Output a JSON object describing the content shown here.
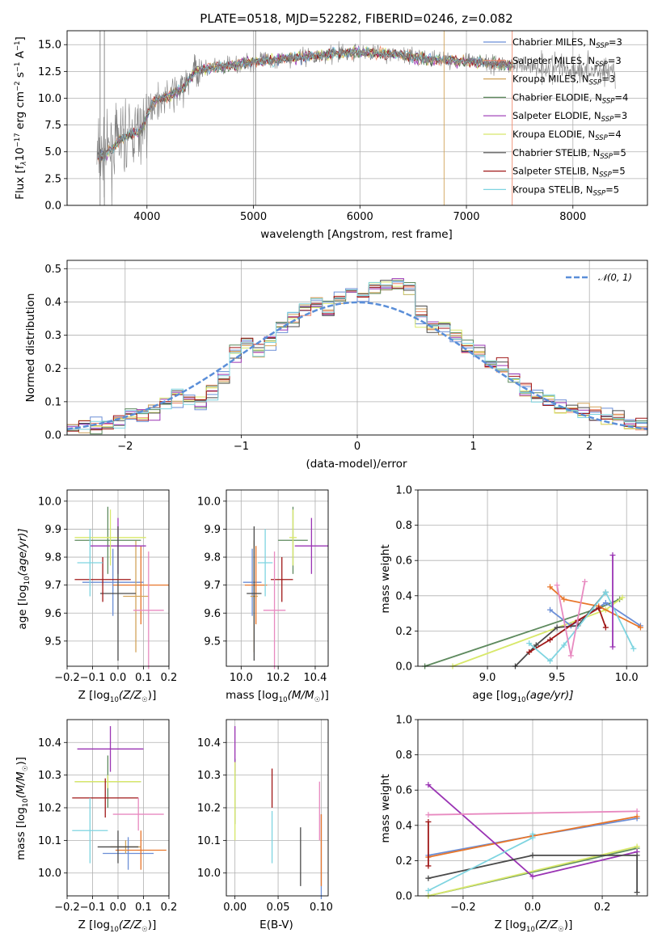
{
  "title": "PLATE=0518, MJD=52282, FIBERID=0246, z=0.082",
  "colors": {
    "Chabrier MILES": "#6b8ed6",
    "Salpeter MILES": "#f08a6e",
    "Kroupa MILES": "#d2a45a",
    "Chabrier ELODIE": "#5e8a5e",
    "Salpeter ELODIE": "#9a34b4",
    "Kroupa ELODIE": "#d8e86a",
    "Chabrier STELIB": "#4a4a4a",
    "Salpeter STELIB": "#a01818",
    "Kroupa STELIB": "#7ed4e0",
    "gaussian": "#5a8ed8",
    "pink": "#e88ac0",
    "orange": "#e8762a",
    "grey": "#888888"
  },
  "spectrum": {
    "xlabel": "wavelength [Angstrom, rest frame]",
    "ylabel": "Flux [f",
    "ylabel_suffix": "10",
    "ylabel_exp": "−17",
    "ylabel_units": " erg cm",
    "ylabel_e2": "−2",
    "ylabel_s": " s",
    "ylabel_e1": "−1",
    "ylabel_A": " A",
    "ylabel_e3": "−1",
    "ylabel_end": "]",
    "legend": [
      {
        "label": "Chabrier MILES, N",
        "n": "3"
      },
      {
        "label": "Salpeter MILES, N",
        "n": "3"
      },
      {
        "label": "Kroupa MILES, N",
        "n": "3"
      },
      {
        "label": "Chabrier ELODIE, N",
        "n": "4"
      },
      {
        "label": "Salpeter ELODIE, N",
        "n": "3"
      },
      {
        "label": "Kroupa ELODIE, N",
        "n": "4"
      },
      {
        "label": "Chabrier STELIB, N",
        "n": "5"
      },
      {
        "label": "Salpeter STELIB, N",
        "n": "5"
      },
      {
        "label": "Kroupa STELIB, N",
        "n": "5"
      }
    ],
    "legend_sub": "SSP"
  },
  "residuals": {
    "xlabel": "(data-model)/error",
    "ylabel": "Normed distribution",
    "legend": "𝒩(0, 1)"
  },
  "labels": {
    "age_ylabel": "age  [log",
    "age_ylabel_b": "(age/yr)]",
    "z_xlabel": "Z [log",
    "z_xlabel_b": "(Z/Z",
    "z_xlabel_c": ")]",
    "mass_xlabel": "mass [log",
    "mass_xlabel_b": "(M/M",
    "mass_xlabel_c": ")]",
    "mass_ylabel": "mass [log",
    "mass_ylabel_b": "(M/M",
    "mass_ylabel_c": ")]",
    "ebv_xlabel": "E(B-V)",
    "mw_ylabel": "mass weight",
    "age_xlabel": "age  [log",
    "age_xlabel_b": "(age/yr)]",
    "sub10": "10",
    "sun": "☉"
  },
  "chart_data": [
    {
      "type": "line",
      "name": "spectrum",
      "xlim": [
        3250,
        8700
      ],
      "ylim": [
        0,
        16.3
      ],
      "xticks": [
        4000,
        5000,
        6000,
        7000,
        8000
      ],
      "yticks": [
        0.0,
        2.5,
        5.0,
        7.5,
        10.0,
        12.5,
        15.0
      ],
      "continuum_x": [
        3550,
        3650,
        3750,
        3850,
        3950,
        4050,
        4150,
        4250,
        4350,
        4450,
        4600,
        4800,
        5000,
        5200,
        5400,
        5600,
        5800,
        6000,
        6200,
        6400,
        6600,
        6800,
        7000,
        7200,
        7400,
        7600,
        7800,
        8000,
        8200,
        8400
      ],
      "continuum_y": [
        4.5,
        5.0,
        6.2,
        6.6,
        7.0,
        9.6,
        10.0,
        10.4,
        11.0,
        12.6,
        12.8,
        13.1,
        13.4,
        13.6,
        13.8,
        14.0,
        14.2,
        14.3,
        14.2,
        14.0,
        13.7,
        13.6,
        13.4,
        13.3,
        13.1,
        13.0,
        12.9,
        12.7,
        12.6,
        12.5
      ]
    },
    {
      "type": "bar",
      "name": "residual histogram",
      "xlim": [
        -2.5,
        2.5
      ],
      "ylim": [
        0,
        0.525
      ],
      "xticks": [
        -2,
        -1,
        0,
        1,
        2
      ],
      "yticks": [
        0.0,
        0.1,
        0.2,
        0.3,
        0.4,
        0.5
      ],
      "bin_edges": [
        -2.5,
        -2.4,
        -2.3,
        -2.2,
        -2.1,
        -2.0,
        -1.9,
        -1.8,
        -1.7,
        -1.6,
        -1.5,
        -1.4,
        -1.3,
        -1.2,
        -1.1,
        -1.0,
        -0.9,
        -0.8,
        -0.7,
        -0.6,
        -0.5,
        -0.4,
        -0.3,
        -0.2,
        -0.1,
        0.0,
        0.1,
        0.2,
        0.3,
        0.4,
        0.5,
        0.6,
        0.7,
        0.8,
        0.9,
        1.0,
        1.1,
        1.2,
        1.3,
        1.4,
        1.5,
        1.6,
        1.7,
        1.8,
        1.9,
        2.0,
        2.1,
        2.2,
        2.3,
        2.4,
        2.5
      ],
      "density": [
        0.02,
        0.025,
        0.03,
        0.035,
        0.045,
        0.055,
        0.06,
        0.08,
        0.1,
        0.11,
        0.1,
        0.09,
        0.13,
        0.17,
        0.25,
        0.28,
        0.25,
        0.28,
        0.33,
        0.35,
        0.38,
        0.4,
        0.38,
        0.42,
        0.44,
        0.43,
        0.44,
        0.45,
        0.46,
        0.44,
        0.36,
        0.33,
        0.33,
        0.3,
        0.27,
        0.24,
        0.22,
        0.2,
        0.17,
        0.14,
        0.11,
        0.1,
        0.08,
        0.08,
        0.07,
        0.06,
        0.05,
        0.05,
        0.04,
        0.03
      ],
      "gaussian": "N(0,1)"
    },
    {
      "type": "scatter",
      "name": "age vs Z",
      "xlim": [
        -0.2,
        0.2
      ],
      "ylim": [
        9.41,
        10.04
      ],
      "xticks": [
        -0.2,
        -0.1,
        0.0,
        0.1,
        0.2
      ],
      "yticks": [
        9.5,
        9.6,
        9.7,
        9.8,
        9.9,
        10.0
      ],
      "points": [
        {
          "x": -0.02,
          "y": 9.71,
          "xerr": 0.12,
          "yerr": 0.12,
          "c": "#6b8ed6"
        },
        {
          "x": 0.09,
          "y": 9.7,
          "xerr": 0.11,
          "yerr": 0.14,
          "c": "#e8762a"
        },
        {
          "x": 0.07,
          "y": 9.66,
          "xerr": 0.05,
          "yerr": 0.2,
          "c": "#d2a45a"
        },
        {
          "x": -0.04,
          "y": 9.86,
          "xerr": 0.13,
          "yerr": 0.12,
          "c": "#5e8a5e"
        },
        {
          "x": 0.0,
          "y": 9.84,
          "xerr": 0.11,
          "yerr": 0.1,
          "c": "#9a34b4"
        },
        {
          "x": -0.03,
          "y": 9.87,
          "xerr": 0.14,
          "yerr": 0.1,
          "c": "#d8e86a"
        },
        {
          "x": 0.0,
          "y": 9.67,
          "xerr": 0.07,
          "yerr": 0.24,
          "c": "#4a4a4a"
        },
        {
          "x": -0.06,
          "y": 9.72,
          "xerr": 0.11,
          "yerr": 0.08,
          "c": "#a01818"
        },
        {
          "x": -0.11,
          "y": 9.78,
          "xerr": 0.05,
          "yerr": 0.12,
          "c": "#7ed4e0"
        },
        {
          "x": 0.12,
          "y": 9.61,
          "xerr": 0.06,
          "yerr": 0.21,
          "c": "#e88ac0"
        }
      ]
    },
    {
      "type": "scatter",
      "name": "age vs mass",
      "xlim": [
        9.92,
        10.47
      ],
      "ylim": [
        9.41,
        10.04
      ],
      "xticks": [
        10.0,
        10.2,
        10.4
      ],
      "yticks": [
        9.5,
        9.6,
        9.7,
        9.8,
        9.9,
        10.0
      ],
      "points": [
        {
          "x": 10.06,
          "y": 9.71,
          "xerr": 0.05,
          "yerr": 0.12,
          "c": "#6b8ed6"
        },
        {
          "x": 10.08,
          "y": 9.7,
          "xerr": 0.06,
          "yerr": 0.14,
          "c": "#e8762a"
        },
        {
          "x": 10.07,
          "y": 9.66,
          "xerr": 0.02,
          "yerr": 0.2,
          "c": "#d2a45a"
        },
        {
          "x": 10.28,
          "y": 9.86,
          "xerr": 0.08,
          "yerr": 0.12,
          "c": "#5e8a5e"
        },
        {
          "x": 10.38,
          "y": 9.84,
          "xerr": 0.09,
          "yerr": 0.1,
          "c": "#9a34b4"
        },
        {
          "x": 10.28,
          "y": 9.87,
          "xerr": 0.02,
          "yerr": 0.1,
          "c": "#d8e86a"
        },
        {
          "x": 10.07,
          "y": 9.67,
          "xerr": 0.04,
          "yerr": 0.24,
          "c": "#4a4a4a"
        },
        {
          "x": 10.22,
          "y": 9.72,
          "xerr": 0.06,
          "yerr": 0.08,
          "c": "#a01818"
        },
        {
          "x": 10.13,
          "y": 9.78,
          "xerr": 0.04,
          "yerr": 0.12,
          "c": "#7ed4e0"
        },
        {
          "x": 10.18,
          "y": 9.61,
          "xerr": 0.06,
          "yerr": 0.21,
          "c": "#e88ac0"
        }
      ]
    },
    {
      "type": "line",
      "name": "mass weight vs age",
      "xlim": [
        8.5,
        10.15
      ],
      "ylim": [
        0,
        1.0
      ],
      "xticks": [
        9.0,
        9.5,
        10.0
      ],
      "yticks": [
        0.0,
        0.2,
        0.4,
        0.6,
        0.8,
        1.0
      ],
      "series": [
        {
          "c": "#5e8a5e",
          "x": [
            8.55,
            9.8,
            9.95
          ],
          "y": [
            0.0,
            0.33,
            0.38
          ]
        },
        {
          "c": "#d8e86a",
          "x": [
            8.75,
            9.85,
            9.97
          ],
          "y": [
            0.0,
            0.32,
            0.39
          ]
        },
        {
          "c": "#6b8ed6",
          "x": [
            9.45,
            9.6,
            9.85,
            10.1
          ],
          "y": [
            0.32,
            0.23,
            0.36,
            0.23
          ]
        },
        {
          "c": "#e8762a",
          "x": [
            9.45,
            9.55,
            9.8,
            10.1
          ],
          "y": [
            0.45,
            0.38,
            0.34,
            0.22
          ]
        },
        {
          "c": "#4a4a4a",
          "x": [
            9.2,
            9.35,
            9.5,
            9.65,
            9.85
          ],
          "y": [
            0.0,
            0.12,
            0.22,
            0.23,
            0.42
          ]
        },
        {
          "c": "#a01818",
          "x": [
            9.3,
            9.45,
            9.65,
            9.8,
            9.85
          ],
          "y": [
            0.08,
            0.15,
            0.26,
            0.33,
            0.22
          ]
        },
        {
          "c": "#7ed4e0",
          "x": [
            9.3,
            9.45,
            9.55,
            9.85,
            10.05
          ],
          "y": [
            0.13,
            0.03,
            0.12,
            0.42,
            0.1
          ]
        },
        {
          "c": "#9a34b4",
          "x": [
            9.9,
            9.9
          ],
          "y": [
            0.11,
            0.63
          ]
        },
        {
          "c": "#e88ac0",
          "x": [
            9.5,
            9.6,
            9.7
          ],
          "y": [
            0.46,
            0.06,
            0.48
          ]
        }
      ]
    },
    {
      "type": "scatter",
      "name": "mass vs Z",
      "xlim": [
        -0.2,
        0.2
      ],
      "ylim": [
        9.93,
        10.47
      ],
      "xticks": [
        -0.2,
        -0.1,
        0.0,
        0.1,
        0.2
      ],
      "yticks": [
        10.0,
        10.1,
        10.2,
        10.3,
        10.4
      ],
      "points": [
        {
          "x": 0.04,
          "y": 10.06,
          "xerr": 0.1,
          "yerr": 0.05,
          "c": "#6b8ed6"
        },
        {
          "x": 0.09,
          "y": 10.07,
          "xerr": 0.1,
          "yerr": 0.06,
          "c": "#e8762a"
        },
        {
          "x": 0.03,
          "y": 10.08,
          "xerr": 0.06,
          "yerr": 0.02,
          "c": "#d2a45a"
        },
        {
          "x": -0.04,
          "y": 10.28,
          "xerr": 0.13,
          "yerr": 0.08,
          "c": "#5e8a5e"
        },
        {
          "x": -0.03,
          "y": 10.38,
          "xerr": 0.13,
          "yerr": 0.07,
          "c": "#9a34b4"
        },
        {
          "x": -0.04,
          "y": 10.28,
          "xerr": 0.13,
          "yerr": 0.02,
          "c": "#d8e86a"
        },
        {
          "x": 0.0,
          "y": 10.08,
          "xerr": 0.08,
          "yerr": 0.05,
          "c": "#4a4a4a"
        },
        {
          "x": -0.05,
          "y": 10.23,
          "xerr": 0.13,
          "yerr": 0.06,
          "c": "#a01818"
        },
        {
          "x": -0.11,
          "y": 10.13,
          "xerr": 0.07,
          "yerr": 0.1,
          "c": "#7ed4e0"
        },
        {
          "x": 0.08,
          "y": 10.18,
          "xerr": 0.1,
          "yerr": 0.05,
          "c": "#e88ac0"
        }
      ]
    },
    {
      "type": "scatter",
      "name": "mass vs E(B-V)",
      "xlim": [
        -0.01,
        0.108
      ],
      "ylim": [
        9.93,
        10.47
      ],
      "xticks": [
        0.0,
        0.05,
        0.1
      ],
      "yticks": [
        10.0,
        10.1,
        10.2,
        10.3,
        10.4
      ],
      "points": [
        {
          "x": 0.1,
          "y": 10.05,
          "xerr": 0,
          "yerr": 0.13,
          "c": "#6b8ed6"
        },
        {
          "x": 0.1,
          "y": 10.07,
          "xerr": 0,
          "yerr": 0.11,
          "c": "#e8762a"
        },
        {
          "x": 0.0,
          "y": 10.25,
          "xerr": 0,
          "yerr": 0.1,
          "c": "#5e8a5e"
        },
        {
          "x": 0.0,
          "y": 10.38,
          "xerr": 0,
          "yerr": 0.07,
          "c": "#9a34b4"
        },
        {
          "x": 0.0,
          "y": 10.22,
          "xerr": 0,
          "yerr": 0.12,
          "c": "#d8e86a"
        },
        {
          "x": 0.076,
          "y": 10.05,
          "xerr": 0,
          "yerr": 0.09,
          "c": "#4a4a4a"
        },
        {
          "x": 0.043,
          "y": 10.26,
          "xerr": 0,
          "yerr": 0.06,
          "c": "#a01818"
        },
        {
          "x": 0.043,
          "y": 10.11,
          "xerr": 0,
          "yerr": 0.08,
          "c": "#7ed4e0"
        },
        {
          "x": 0.098,
          "y": 10.19,
          "xerr": 0,
          "yerr": 0.09,
          "c": "#e88ac0"
        }
      ]
    },
    {
      "type": "line",
      "name": "mass weight vs Z",
      "xlim": [
        -0.33,
        0.33
      ],
      "ylim": [
        0,
        1.0
      ],
      "xticks": [
        -0.2,
        0.0,
        0.2
      ],
      "yticks": [
        0.0,
        0.2,
        0.4,
        0.6,
        0.8,
        1.0
      ],
      "series": [
        {
          "c": "#6b8ed6",
          "x": [
            -0.3,
            0.0,
            0.3
          ],
          "y": [
            0.23,
            0.34,
            0.44
          ]
        },
        {
          "c": "#e8762a",
          "x": [
            -0.3,
            0.0,
            0.3
          ],
          "y": [
            0.22,
            0.34,
            0.45
          ]
        },
        {
          "c": "#5e8a5e",
          "x": [
            -0.3,
            0.3
          ],
          "y": [
            0.0,
            0.27
          ]
        },
        {
          "c": "#d8e86a",
          "x": [
            -0.3,
            0.3
          ],
          "y": [
            0.0,
            0.28
          ]
        },
        {
          "c": "#9a34b4",
          "x": [
            -0.3,
            0.0,
            0.3
          ],
          "y": [
            0.63,
            0.11,
            0.25
          ]
        },
        {
          "c": "#e88ac0",
          "x": [
            -0.3,
            0.3
          ],
          "y": [
            0.46,
            0.48
          ]
        },
        {
          "c": "#4a4a4a",
          "x": [
            -0.3,
            0.0,
            0.3,
            0.3
          ],
          "y": [
            0.1,
            0.23,
            0.23,
            0.02
          ]
        },
        {
          "c": "#7ed4e0",
          "x": [
            -0.3,
            0.0,
            0.0
          ],
          "y": [
            0.03,
            0.33,
            0.35
          ]
        },
        {
          "c": "#a01818",
          "x": [
            -0.3,
            -0.3
          ],
          "y": [
            0.17,
            0.42
          ]
        }
      ]
    }
  ]
}
